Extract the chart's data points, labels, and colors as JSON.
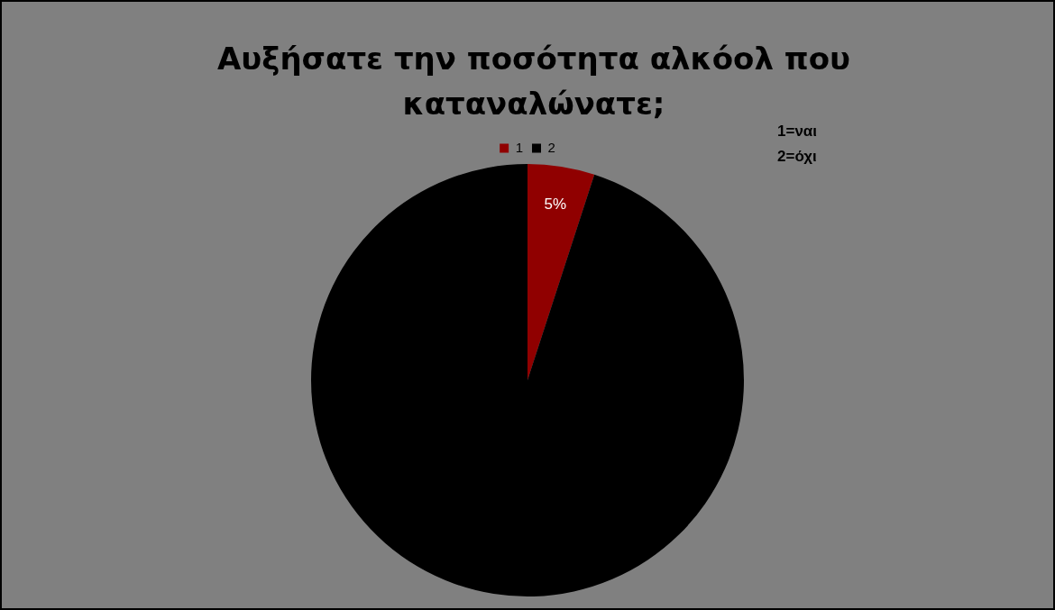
{
  "chart_data": {
    "type": "pie",
    "title": "Αυξήσατε την ποσότητα αλκόολ που καταναλώνατε;",
    "categories": [
      "1",
      "2"
    ],
    "values": [
      5,
      95
    ],
    "colors": [
      "#900000",
      "#000000"
    ],
    "value_labels": [
      "5%",
      null
    ],
    "legend": "top",
    "annotations": [
      "1=ναι",
      "2=όχι"
    ]
  }
}
